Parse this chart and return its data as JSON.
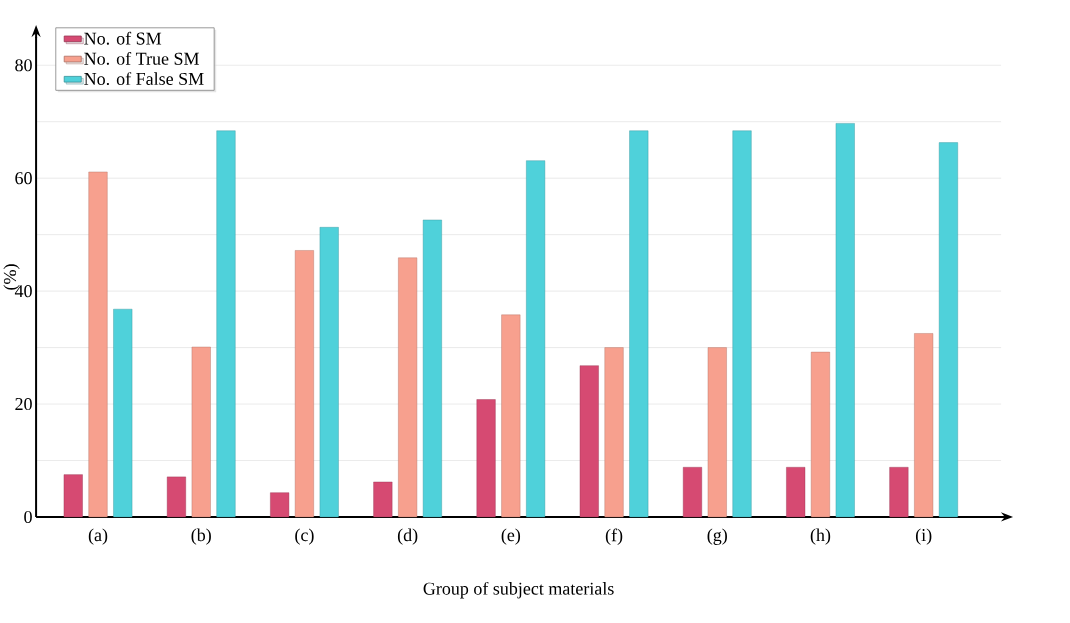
{
  "chart_data": {
    "type": "bar",
    "xlabel": "Group of subject materials",
    "ylabel": "(%)",
    "categories": [
      "(a)",
      "(b)",
      "(c)",
      "(d)",
      "(e)",
      "(f)",
      "(g)",
      "(h)",
      "(i)"
    ],
    "series": [
      {
        "name": "No. of SM",
        "color": "#d64a72",
        "values": [
          7.5,
          7.1,
          4.3,
          6.2,
          20.8,
          26.8,
          8.8,
          8.8,
          8.8
        ]
      },
      {
        "name": "No. of True SM",
        "color": "#f7a08e",
        "values": [
          61.1,
          30.1,
          47.2,
          45.9,
          35.8,
          30.0,
          30.0,
          29.2,
          32.5
        ]
      },
      {
        "name": "No. of False SM",
        "color": "#4fd1da",
        "values": [
          36.8,
          68.4,
          51.3,
          52.6,
          63.1,
          68.4,
          68.4,
          69.7,
          66.3
        ]
      }
    ],
    "ylim": [
      0,
      85
    ],
    "yticks": [
      0,
      {
        "value": 10,
        "label": null
      },
      20,
      {
        "value": 30,
        "label": null
      },
      40,
      {
        "value": 50,
        "label": null
      },
      60,
      {
        "value": 70,
        "label": null
      },
      80
    ],
    "grid": "y",
    "legend": "top left"
  }
}
